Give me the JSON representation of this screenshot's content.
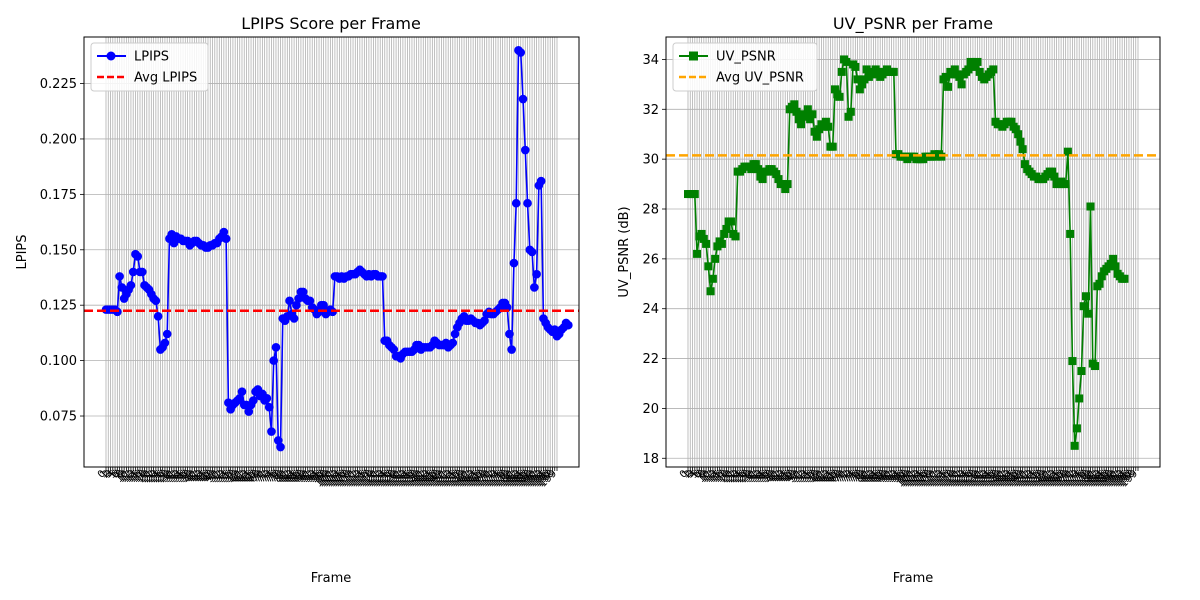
{
  "chart_data": [
    {
      "type": "line",
      "title": "LPIPS Score per Frame",
      "xlabel": "Frame",
      "ylabel": "LPIPS",
      "ylim": [
        0.052,
        0.246
      ],
      "yticks": [
        "0.075",
        "0.100",
        "0.125",
        "0.150",
        "0.175",
        "0.200",
        "0.225"
      ],
      "x_tick_count": 200,
      "grid": true,
      "legend_position": "top-left",
      "series": [
        {
          "name": "LPIPS",
          "color": "#0000ff",
          "marker": "circle",
          "values": [
            0.123,
            0.123,
            0.123,
            0.123,
            0.123,
            0.122,
            0.138,
            0.133,
            0.128,
            0.13,
            0.132,
            0.134,
            0.14,
            0.148,
            0.147,
            0.14,
            0.14,
            0.134,
            0.133,
            0.132,
            0.13,
            0.128,
            0.127,
            0.12,
            0.105,
            0.106,
            0.108,
            0.112,
            0.155,
            0.157,
            0.153,
            0.156,
            0.155,
            0.155,
            0.154,
            0.154,
            0.154,
            0.152,
            0.153,
            0.154,
            0.154,
            0.153,
            0.152,
            0.152,
            0.151,
            0.151,
            0.152,
            0.152,
            0.153,
            0.153,
            0.155,
            0.156,
            0.158,
            0.155,
            0.081,
            0.078,
            0.08,
            0.081,
            0.082,
            0.083,
            0.086,
            0.08,
            0.08,
            0.077,
            0.08,
            0.082,
            0.086,
            0.087,
            0.084,
            0.085,
            0.082,
            0.083,
            0.079,
            0.068,
            0.1,
            0.106,
            0.064,
            0.061,
            0.119,
            0.118,
            0.12,
            0.127,
            0.121,
            0.119,
            0.125,
            0.128,
            0.131,
            0.131,
            0.128,
            0.127,
            0.127,
            0.124,
            0.123,
            0.121,
            0.122,
            0.125,
            0.125,
            0.121,
            0.122,
            0.123,
            0.122,
            0.138,
            0.138,
            0.137,
            0.138,
            0.137,
            0.138,
            0.138,
            0.139,
            0.139,
            0.139,
            0.14,
            0.141,
            0.14,
            0.139,
            0.138,
            0.139,
            0.138,
            0.139,
            0.139,
            0.138,
            0.138,
            0.138,
            0.109,
            0.109,
            0.107,
            0.106,
            0.105,
            0.102,
            0.102,
            0.101,
            0.103,
            0.104,
            0.104,
            0.104,
            0.104,
            0.105,
            0.107,
            0.107,
            0.105,
            0.106,
            0.106,
            0.106,
            0.106,
            0.107,
            0.109,
            0.108,
            0.107,
            0.107,
            0.107,
            0.108,
            0.106,
            0.107,
            0.108,
            0.112,
            0.115,
            0.117,
            0.119,
            0.12,
            0.118,
            0.118,
            0.119,
            0.118,
            0.117,
            0.117,
            0.116,
            0.117,
            0.118,
            0.121,
            0.122,
            0.121,
            0.121,
            0.122,
            0.123,
            0.124,
            0.126,
            0.126,
            0.124,
            0.112,
            0.105,
            0.144,
            0.171,
            0.24,
            0.239,
            0.218,
            0.195,
            0.171,
            0.15,
            0.149,
            0.133,
            0.139,
            0.179,
            0.181,
            0.119,
            0.117,
            0.115,
            0.114,
            0.113,
            0.114,
            0.111,
            0.112,
            0.114,
            0.115,
            0.117,
            0.116
          ]
        },
        {
          "name": "Avg LPIPS",
          "color": "#ff0000",
          "style": "dashed",
          "value": 0.1225
        }
      ]
    },
    {
      "type": "line",
      "title": "UV_PSNR per Frame",
      "xlabel": "Frame",
      "ylabel": "UV_PSNR (dB)",
      "ylim": [
        17.65,
        34.9
      ],
      "yticks": [
        "18",
        "20",
        "22",
        "24",
        "26",
        "28",
        "30",
        "32",
        "34"
      ],
      "x_tick_count": 200,
      "grid": true,
      "legend_position": "top-left",
      "series": [
        {
          "name": "UV_PSNR",
          "color": "#008000",
          "marker": "square",
          "values": [
            28.6,
            28.6,
            28.6,
            28.6,
            26.2,
            26.9,
            27.0,
            26.8,
            26.6,
            25.7,
            24.7,
            25.2,
            26.0,
            26.5,
            26.7,
            26.6,
            27.0,
            27.2,
            27.5,
            27.5,
            27.0,
            26.9,
            29.5,
            29.5,
            29.6,
            29.7,
            29.7,
            29.7,
            29.6,
            29.8,
            29.8,
            29.6,
            29.3,
            29.2,
            29.5,
            29.5,
            29.6,
            29.6,
            29.5,
            29.4,
            29.2,
            29.0,
            29.0,
            28.8,
            29.0,
            32.0,
            32.1,
            32.2,
            31.9,
            31.6,
            31.4,
            31.8,
            31.7,
            32.0,
            31.6,
            31.8,
            31.1,
            30.9,
            31.2,
            31.4,
            31.3,
            31.5,
            31.3,
            30.5,
            30.5,
            32.8,
            32.6,
            32.5,
            33.5,
            34.0,
            33.9,
            31.7,
            31.9,
            33.8,
            33.7,
            33.2,
            32.8,
            33.0,
            33.2,
            33.6,
            33.3,
            33.5,
            33.4,
            33.6,
            33.5,
            33.3,
            33.4,
            33.5,
            33.6,
            33.5,
            33.5,
            33.5,
            30.2,
            30.2,
            30.1,
            30.1,
            30.1,
            30.0,
            30.1,
            30.1,
            30.1,
            30.0,
            30.0,
            30.0,
            30.0,
            30.1,
            30.1,
            30.1,
            30.1,
            30.2,
            30.1,
            30.2,
            30.1,
            33.2,
            33.3,
            32.9,
            33.5,
            33.4,
            33.6,
            33.4,
            33.3,
            33.0,
            33.4,
            33.5,
            33.6,
            33.9,
            33.8,
            33.7,
            33.9,
            33.5,
            33.3,
            33.2,
            33.3,
            33.4,
            33.5,
            33.6,
            31.5,
            31.4,
            31.4,
            31.3,
            31.4,
            31.5,
            31.5,
            31.5,
            31.3,
            31.2,
            31.0,
            30.7,
            30.4,
            29.8,
            29.6,
            29.5,
            29.4,
            29.3,
            29.3,
            29.2,
            29.2,
            29.2,
            29.3,
            29.4,
            29.5,
            29.5,
            29.3,
            29.0,
            29.0,
            29.1,
            29.0,
            29.0,
            30.3,
            27.0,
            21.9,
            18.5,
            19.2,
            20.4,
            21.5,
            24.1,
            24.5,
            23.8,
            28.1,
            21.8,
            21.7,
            24.9,
            25.0,
            25.3,
            25.5,
            25.6,
            25.7,
            25.8,
            26.0,
            25.7,
            25.4,
            25.3,
            25.2,
            25.2
          ]
        },
        {
          "name": "Avg UV_PSNR",
          "color": "#ffa500",
          "style": "dashed",
          "value": 30.15
        }
      ]
    }
  ]
}
